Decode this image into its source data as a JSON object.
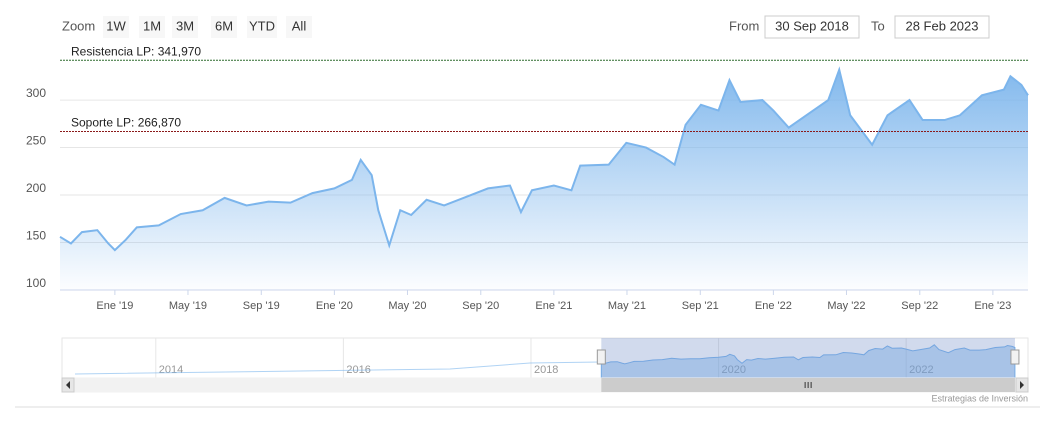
{
  "zoom": {
    "label": "Zoom",
    "buttons": [
      "1W",
      "1M",
      "3M",
      "6M",
      "YTD",
      "All"
    ]
  },
  "range": {
    "from_label": "From",
    "from": "30 Sep 2018",
    "to_label": "To",
    "to": "28 Feb 2023"
  },
  "chart_data": {
    "type": "area",
    "x": [
      2018.75,
      2018.8,
      2018.85,
      2018.92,
      2018.97,
      2019.0,
      2019.05,
      2019.1,
      2019.2,
      2019.3,
      2019.4,
      2019.5,
      2019.6,
      2019.7,
      2019.8,
      2019.9,
      2020.0,
      2020.08,
      2020.12,
      2020.17,
      2020.2,
      2020.25,
      2020.3,
      2020.35,
      2020.42,
      2020.5,
      2020.6,
      2020.7,
      2020.8,
      2020.85,
      2020.9,
      2021.0,
      2021.08,
      2021.12,
      2021.25,
      2021.33,
      2021.42,
      2021.5,
      2021.55,
      2021.6,
      2021.67,
      2021.75,
      2021.8,
      2021.85,
      2021.95,
      2022.0,
      2022.07,
      2022.15,
      2022.25,
      2022.3,
      2022.35,
      2022.45,
      2022.52,
      2022.62,
      2022.68,
      2022.78,
      2022.85,
      2022.95,
      2023.05,
      2023.08,
      2023.13,
      2023.16
    ],
    "series": [
      {
        "color": "#7cb5ec",
        "values": [
          156,
          149,
          161,
          163,
          149,
          142,
          153,
          166,
          168,
          180,
          184,
          197,
          189,
          193,
          192,
          202,
          207,
          216,
          237,
          221,
          184,
          147,
          184,
          179,
          195,
          189,
          198,
          207,
          210,
          182,
          205,
          210,
          205,
          231,
          232,
          255,
          250,
          240,
          232,
          274,
          295,
          289,
          321,
          298,
          300,
          289,
          271,
          284,
          300,
          332,
          284,
          253,
          284,
          300,
          279,
          279,
          284,
          305,
          311,
          325,
          316,
          305
        ]
      }
    ],
    "xlim": [
      2018.75,
      2023.16
    ],
    "xticks": [
      {
        "value": 2019,
        "label": "Ene '19"
      },
      {
        "value": 2019.333,
        "label": "May '19"
      },
      {
        "value": 2019.667,
        "label": "Sep '19"
      },
      {
        "value": 2020,
        "label": "Ene '20"
      },
      {
        "value": 2020.333,
        "label": "May '20"
      },
      {
        "value": 2020.667,
        "label": "Sep '20"
      },
      {
        "value": 2021,
        "label": "Ene '21"
      },
      {
        "value": 2021.333,
        "label": "May '21"
      },
      {
        "value": 2021.667,
        "label": "Sep '21"
      },
      {
        "value": 2022,
        "label": "Ene '22"
      },
      {
        "value": 2022.333,
        "label": "May '22"
      },
      {
        "value": 2022.667,
        "label": "Sep '22"
      },
      {
        "value": 2023,
        "label": "Ene '23"
      }
    ],
    "ylim": [
      100,
      358
    ],
    "yticks": [
      100,
      150,
      200,
      250,
      300
    ],
    "grid": true,
    "plot_lines": [
      {
        "value": 341.97,
        "label": "Resistencia LP: 341,970",
        "color": "#2e6b2e"
      },
      {
        "value": 266.87,
        "label": "Soporte LP: 266,870",
        "color": "#8b1a1a"
      }
    ]
  },
  "navigator": {
    "xlim": [
      2013,
      2023.15
    ],
    "xticks": [
      2014,
      2016,
      2018,
      2020,
      2022
    ]
  },
  "credits": "Estrategias de Inversión"
}
